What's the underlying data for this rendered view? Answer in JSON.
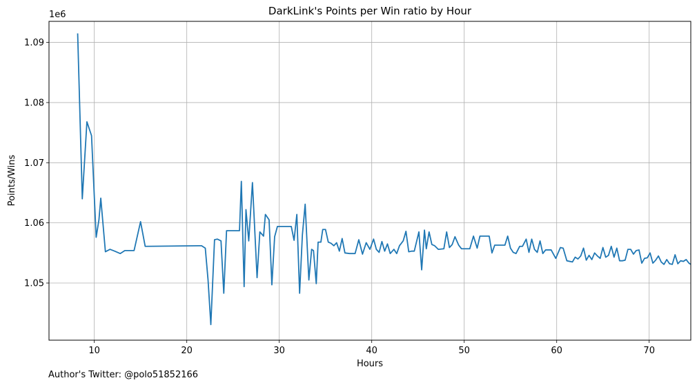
{
  "chart_data": {
    "type": "line",
    "title": "DarkLink's Points per Win ratio by Hour",
    "xlabel": "Hours",
    "ylabel": "Points/Wins",
    "y_offset_label": "1e6",
    "xlim": [
      5.1,
      74.5
    ],
    "ylim": [
      1.0405,
      1.0935
    ],
    "x_ticks": [
      10,
      20,
      30,
      40,
      50,
      60,
      70
    ],
    "y_ticks": [
      1.05,
      1.06,
      1.07,
      1.08,
      1.09
    ],
    "x_tick_labels": [
      "10",
      "20",
      "30",
      "40",
      "50",
      "60",
      "70"
    ],
    "y_tick_labels": [
      "1.05",
      "1.06",
      "1.07",
      "1.08",
      "1.09"
    ],
    "grid": true,
    "series": [
      {
        "color": "#1f77b4",
        "points": [
          [
            8.2,
            1.0915
          ],
          [
            8.7,
            1.064
          ],
          [
            9.2,
            1.0768
          ],
          [
            9.7,
            1.0745
          ],
          [
            10.2,
            1.0576
          ],
          [
            10.5,
            1.0605
          ],
          [
            10.7,
            1.0641
          ],
          [
            11.2,
            1.0552
          ],
          [
            11.7,
            1.0556
          ],
          [
            12.2,
            1.0553
          ],
          [
            12.8,
            1.0549
          ],
          [
            13.3,
            1.0554
          ],
          [
            14.3,
            1.0554
          ],
          [
            15.0,
            1.0602
          ],
          [
            15.5,
            1.0561
          ],
          [
            21.3,
            1.0562
          ],
          [
            21.6,
            1.0562
          ],
          [
            22.0,
            1.0558
          ],
          [
            22.3,
            1.0505
          ],
          [
            22.6,
            1.0431
          ],
          [
            23.0,
            1.0572
          ],
          [
            23.3,
            1.0573
          ],
          [
            23.7,
            1.057
          ],
          [
            24.0,
            1.0483
          ],
          [
            24.3,
            1.0587
          ],
          [
            25.7,
            1.0587
          ],
          [
            25.9,
            1.0669
          ],
          [
            26.2,
            1.0494
          ],
          [
            26.4,
            1.0622
          ],
          [
            26.7,
            1.057
          ],
          [
            27.1,
            1.0667
          ],
          [
            27.6,
            1.0509
          ],
          [
            27.9,
            1.0585
          ],
          [
            28.3,
            1.0578
          ],
          [
            28.5,
            1.0614
          ],
          [
            28.9,
            1.0605
          ],
          [
            29.2,
            1.0497
          ],
          [
            29.5,
            1.0577
          ],
          [
            29.8,
            1.0594
          ],
          [
            31.3,
            1.0594
          ],
          [
            31.6,
            1.0571
          ],
          [
            31.9,
            1.0614
          ],
          [
            32.2,
            1.0483
          ],
          [
            32.5,
            1.058
          ],
          [
            32.8,
            1.0631
          ],
          [
            33.2,
            1.0505
          ],
          [
            33.5,
            1.0556
          ],
          [
            33.7,
            1.0554
          ],
          [
            34.0,
            1.0499
          ],
          [
            34.2,
            1.0568
          ],
          [
            34.5,
            1.0568
          ],
          [
            34.7,
            1.0589
          ],
          [
            35.0,
            1.0589
          ],
          [
            35.3,
            1.0568
          ],
          [
            35.6,
            1.0566
          ],
          [
            35.9,
            1.0562
          ],
          [
            36.2,
            1.0567
          ],
          [
            36.5,
            1.0553
          ],
          [
            36.8,
            1.0574
          ],
          [
            37.1,
            1.055
          ],
          [
            37.6,
            1.0549
          ],
          [
            38.2,
            1.0549
          ],
          [
            38.6,
            1.0572
          ],
          [
            39.0,
            1.0548
          ],
          [
            39.4,
            1.0567
          ],
          [
            39.8,
            1.0556
          ],
          [
            40.2,
            1.0573
          ],
          [
            40.5,
            1.0556
          ],
          [
            40.8,
            1.0551
          ],
          [
            41.1,
            1.0569
          ],
          [
            41.4,
            1.0553
          ],
          [
            41.7,
            1.0565
          ],
          [
            42.0,
            1.0549
          ],
          [
            42.4,
            1.0556
          ],
          [
            42.7,
            1.0549
          ],
          [
            43.0,
            1.0562
          ],
          [
            43.4,
            1.057
          ],
          [
            43.7,
            1.0586
          ],
          [
            44.0,
            1.0552
          ],
          [
            44.3,
            1.0553
          ],
          [
            44.6,
            1.0553
          ],
          [
            45.1,
            1.0585
          ],
          [
            45.4,
            1.0522
          ],
          [
            45.7,
            1.0588
          ],
          [
            45.9,
            1.0557
          ],
          [
            46.2,
            1.0585
          ],
          [
            46.5,
            1.0564
          ],
          [
            46.8,
            1.0562
          ],
          [
            47.2,
            1.0556
          ],
          [
            47.8,
            1.0557
          ],
          [
            48.1,
            1.0585
          ],
          [
            48.4,
            1.0559
          ],
          [
            48.7,
            1.0564
          ],
          [
            49.0,
            1.0577
          ],
          [
            49.4,
            1.0563
          ],
          [
            49.7,
            1.0557
          ],
          [
            50.6,
            1.0557
          ],
          [
            51.0,
            1.0578
          ],
          [
            51.4,
            1.0558
          ],
          [
            51.7,
            1.0578
          ],
          [
            52.7,
            1.0578
          ],
          [
            53.0,
            1.055
          ],
          [
            53.3,
            1.0563
          ],
          [
            54.4,
            1.0563
          ],
          [
            54.7,
            1.0578
          ],
          [
            55.0,
            1.0558
          ],
          [
            55.3,
            1.0551
          ],
          [
            55.6,
            1.0549
          ],
          [
            56.0,
            1.0561
          ],
          [
            56.3,
            1.0561
          ],
          [
            56.7,
            1.0573
          ],
          [
            57.0,
            1.0551
          ],
          [
            57.3,
            1.0573
          ],
          [
            57.6,
            1.0556
          ],
          [
            57.9,
            1.0551
          ],
          [
            58.2,
            1.057
          ],
          [
            58.5,
            1.0549
          ],
          [
            58.8,
            1.0555
          ],
          [
            59.4,
            1.0555
          ],
          [
            59.9,
            1.0541
          ],
          [
            60.4,
            1.0559
          ],
          [
            60.7,
            1.0558
          ],
          [
            61.1,
            1.0537
          ],
          [
            61.4,
            1.0536
          ],
          [
            61.7,
            1.0535
          ],
          [
            62.0,
            1.0543
          ],
          [
            62.3,
            1.054
          ],
          [
            62.6,
            1.0545
          ],
          [
            62.9,
            1.0558
          ],
          [
            63.2,
            1.0538
          ],
          [
            63.5,
            1.0546
          ],
          [
            63.8,
            1.0539
          ],
          [
            64.1,
            1.055
          ],
          [
            64.4,
            1.0545
          ],
          [
            64.7,
            1.0541
          ],
          [
            65.0,
            1.0559
          ],
          [
            65.3,
            1.0543
          ],
          [
            65.6,
            1.0546
          ],
          [
            65.9,
            1.0561
          ],
          [
            66.2,
            1.0543
          ],
          [
            66.5,
            1.0558
          ],
          [
            66.8,
            1.0537
          ],
          [
            67.1,
            1.0537
          ],
          [
            67.4,
            1.0538
          ],
          [
            67.7,
            1.0556
          ],
          [
            68.0,
            1.0556
          ],
          [
            68.3,
            1.0548
          ],
          [
            68.6,
            1.0554
          ],
          [
            68.9,
            1.0555
          ],
          [
            69.2,
            1.0533
          ],
          [
            69.5,
            1.0541
          ],
          [
            69.8,
            1.0542
          ],
          [
            70.1,
            1.055
          ],
          [
            70.4,
            1.0533
          ],
          [
            70.7,
            1.0538
          ],
          [
            71.0,
            1.0545
          ],
          [
            71.3,
            1.0535
          ],
          [
            71.6,
            1.0531
          ],
          [
            71.9,
            1.0539
          ],
          [
            72.2,
            1.0532
          ],
          [
            72.5,
            1.0531
          ],
          [
            72.8,
            1.0547
          ],
          [
            73.1,
            1.0532
          ],
          [
            73.4,
            1.0537
          ],
          [
            73.7,
            1.0536
          ],
          [
            74.0,
            1.0539
          ],
          [
            74.3,
            1.0533
          ],
          [
            74.5,
            1.0531
          ]
        ]
      }
    ]
  },
  "footnote": "Author's Twitter: @polo51852166"
}
